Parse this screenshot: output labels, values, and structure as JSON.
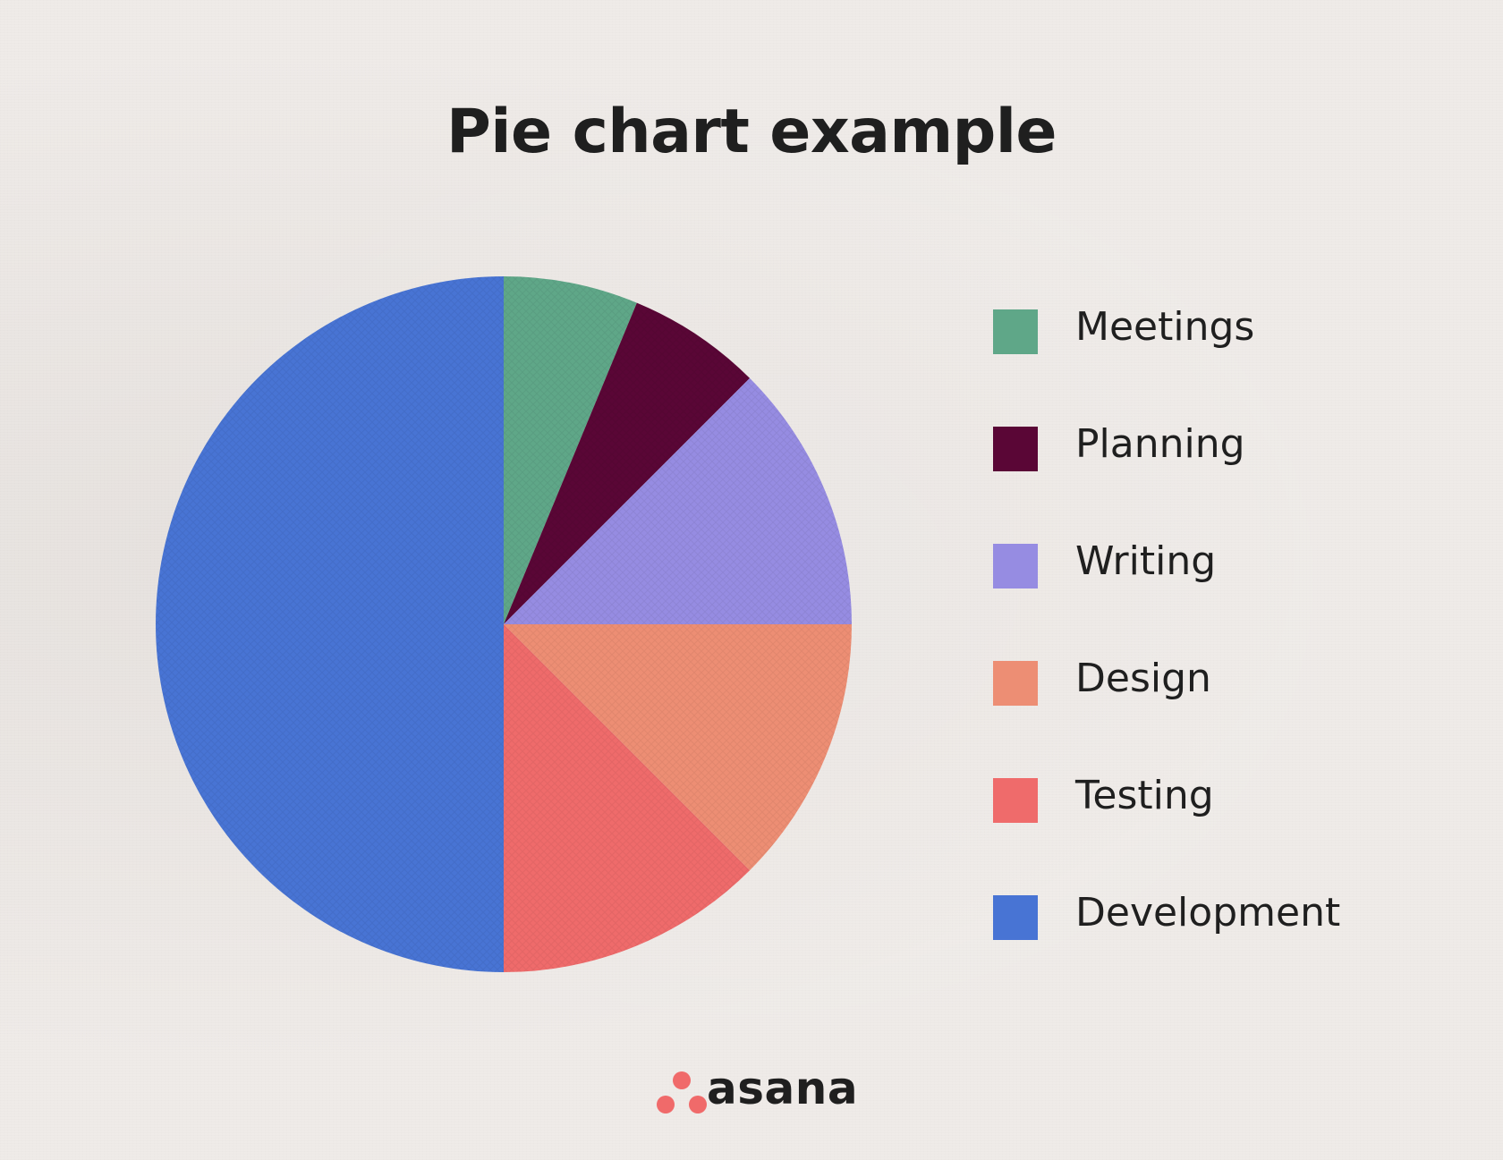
{
  "chart_data": {
    "type": "pie",
    "title": "Pie chart example",
    "slices": [
      {
        "label": "Meetings",
        "value": 6.25,
        "color": "#5fa788"
      },
      {
        "label": "Planning",
        "value": 6.25,
        "color": "#5a0636"
      },
      {
        "label": "Writing",
        "value": 12.5,
        "color": "#968ce2"
      },
      {
        "label": "Design",
        "value": 12.5,
        "color": "#ed8e74"
      },
      {
        "label": "Testing",
        "value": 12.5,
        "color": "#ef6b6b"
      },
      {
        "label": "Development",
        "value": 50,
        "color": "#4874d4"
      }
    ],
    "legend": {
      "placement": "right"
    }
  },
  "brand": {
    "name": "asana",
    "logo_icon": "three-dots-logo-icon",
    "color": "#f06a6a"
  }
}
